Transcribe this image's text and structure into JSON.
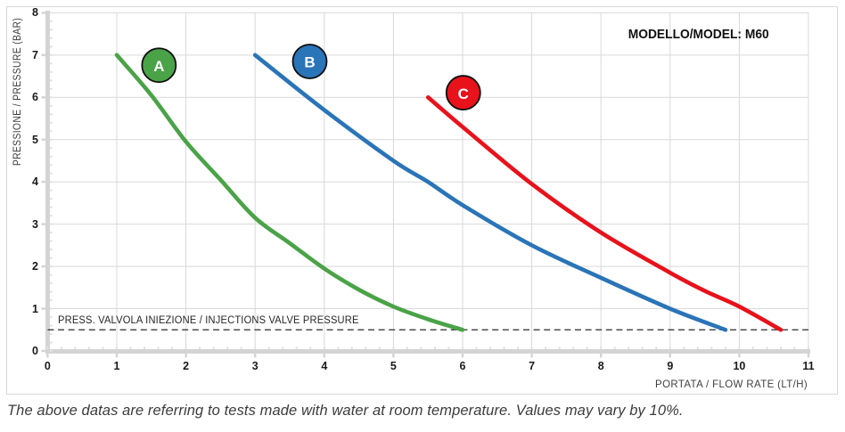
{
  "caption": "The above datas are referring to tests made with water at room temperature. Values may vary by 10%.",
  "chart_data": {
    "type": "line",
    "title": "MODELLO/MODEL: M60",
    "xlabel": "PORTATA / FLOW RATE (LT/H)",
    "ylabel": "PRESSIONE / PRESSURE (BAR)",
    "xlim": [
      0,
      11
    ],
    "ylim": [
      0,
      8
    ],
    "x_ticks": [
      0,
      1,
      2,
      3,
      4,
      5,
      6,
      7,
      8,
      9,
      10,
      11
    ],
    "y_ticks": [
      0,
      1,
      2,
      3,
      4,
      5,
      6,
      7,
      8
    ],
    "grid": true,
    "legend_position": "badges-on-plot",
    "grid_color": "#d9d9d9",
    "axis_color": "#d4d4d4",
    "series": [
      {
        "name": "A",
        "color": "#4aa347",
        "points": [
          [
            1,
            7
          ],
          [
            1.5,
            6.05
          ],
          [
            2,
            4.95
          ],
          [
            2.5,
            4.05
          ],
          [
            3,
            3.15
          ],
          [
            3.5,
            2.55
          ],
          [
            4,
            1.95
          ],
          [
            4.5,
            1.45
          ],
          [
            5,
            1.05
          ],
          [
            5.5,
            0.75
          ],
          [
            6,
            0.5
          ]
        ],
        "badge": {
          "label": "A",
          "x": 1.61,
          "y": 6.76
        }
      },
      {
        "name": "B",
        "color": "#2a74b8",
        "points": [
          [
            3,
            7
          ],
          [
            4,
            5.7
          ],
          [
            5,
            4.5
          ],
          [
            5.5,
            4.0
          ],
          [
            6,
            3.45
          ],
          [
            7,
            2.5
          ],
          [
            8,
            1.73
          ],
          [
            9,
            1.0
          ],
          [
            9.8,
            0.5
          ]
        ],
        "badge": {
          "label": "B",
          "x": 3.79,
          "y": 6.85
        }
      },
      {
        "name": "C",
        "color": "#e8121b",
        "points": [
          [
            5.5,
            6
          ],
          [
            6,
            5.3
          ],
          [
            7,
            3.95
          ],
          [
            8,
            2.8
          ],
          [
            9,
            1.85
          ],
          [
            9.5,
            1.42
          ],
          [
            10,
            1.05
          ],
          [
            10.6,
            0.5
          ]
        ],
        "badge": {
          "label": "C",
          "x": 6.01,
          "y": 6.11
        }
      }
    ],
    "annotation": {
      "y": 0.5,
      "label": "PRESS. VALVOLA INIEZIONE / INJECTIONS VALVE PRESSURE",
      "line_color": "#2b2b2b"
    }
  }
}
